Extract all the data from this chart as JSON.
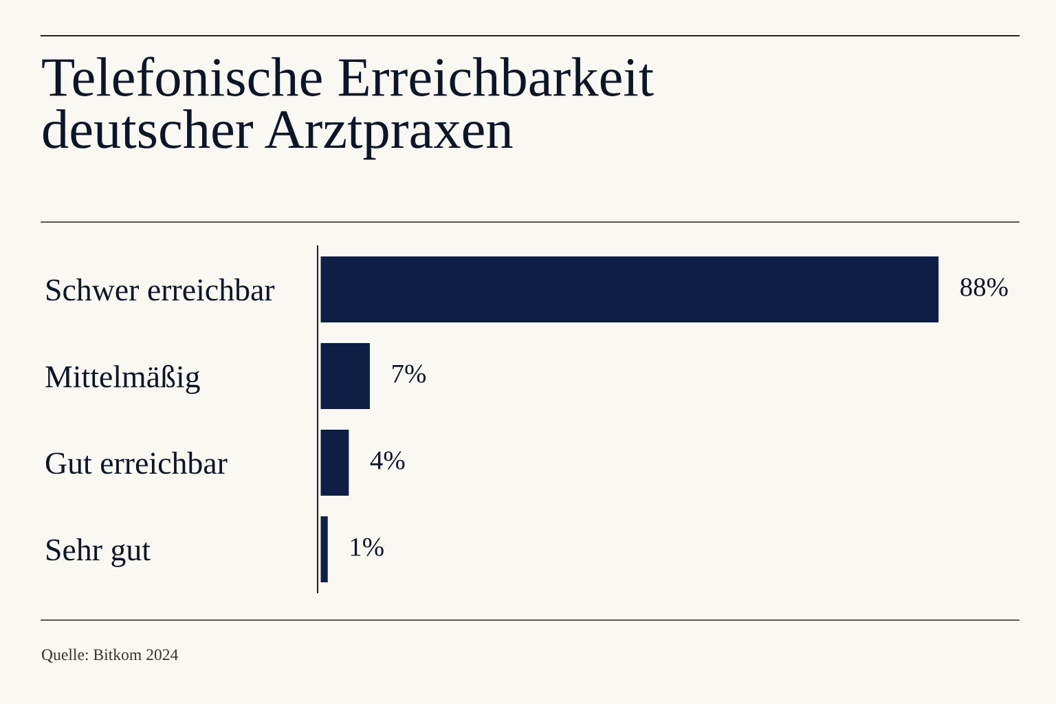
{
  "chart_data": {
    "type": "bar",
    "orientation": "horizontal",
    "title": "Telefonische Erreichbarkeit\ndeutscher Arztpraxen",
    "categories": [
      "Schwer erreichbar",
      "Mittelmäßig",
      "Gut erreichbar",
      "Sehr gut"
    ],
    "values": [
      88,
      7,
      4,
      1
    ],
    "value_labels": [
      "88%",
      "7%",
      "4%",
      "1%"
    ],
    "color": "#0d1f45",
    "grid": false,
    "legend": false,
    "annotations": [
      "Quelle: Bitkom 2024"
    ]
  }
}
